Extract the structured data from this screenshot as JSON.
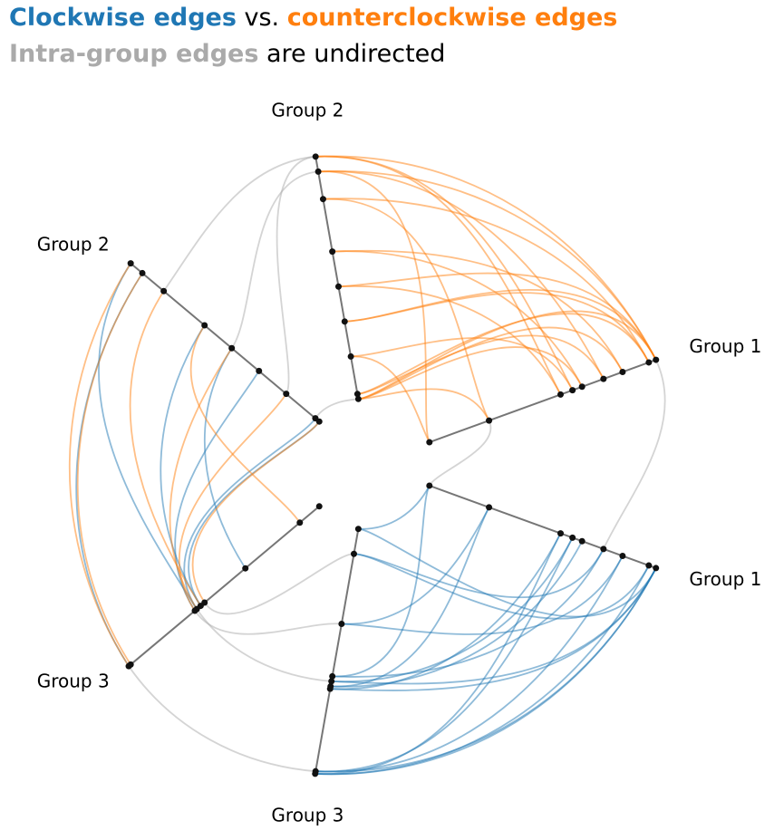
{
  "chart_data": {
    "type": "hive",
    "title_joiner": "vs.",
    "intra_note": "are undirected",
    "groups": [
      {
        "name": "Group 1",
        "nodes": [
          0.0,
          0.25,
          0.55,
          0.6,
          0.64,
          0.73,
          0.81,
          0.92,
          0.95
        ]
      },
      {
        "name": "Group 2",
        "nodes": [
          0.01,
          0.03,
          0.18,
          0.32,
          0.46,
          0.6,
          0.81,
          0.92,
          0.98
        ]
      },
      {
        "name": "Group 3",
        "nodes": [
          0.01,
          0.11,
          0.39,
          0.6,
          0.62,
          0.64,
          0.65,
          0.98,
          0.99
        ]
      }
    ],
    "edges": [
      {
        "name": "Clockwise edges",
        "color": "#1f77b4",
        "links": [
          [
            2,
            0,
            0,
            8
          ],
          [
            2,
            1,
            0,
            7
          ],
          [
            2,
            2,
            0,
            6
          ],
          [
            2,
            3,
            0,
            5
          ],
          [
            2,
            4,
            0,
            8
          ],
          [
            2,
            5,
            0,
            1
          ],
          [
            2,
            6,
            0,
            2
          ],
          [
            2,
            7,
            0,
            3
          ],
          [
            2,
            8,
            0,
            8
          ],
          [
            2,
            0,
            0,
            0
          ],
          [
            2,
            5,
            0,
            4
          ],
          [
            2,
            8,
            0,
            7
          ],
          [
            2,
            7,
            0,
            6
          ],
          [
            2,
            4,
            0,
            3
          ],
          [
            2,
            3,
            0,
            0
          ],
          [
            2,
            6,
            0,
            8
          ],
          [
            2,
            1,
            0,
            5
          ],
          [
            2,
            8,
            0,
            2
          ],
          [
            2,
            7,
            0,
            8
          ],
          [
            2,
            2,
            0,
            1
          ],
          [
            1,
            0,
            2,
            4
          ],
          [
            1,
            1,
            2,
            5
          ],
          [
            1,
            3,
            2,
            6
          ],
          [
            1,
            5,
            2,
            4
          ],
          [
            1,
            8,
            2,
            5
          ],
          [
            1,
            7,
            2,
            8
          ],
          [
            1,
            4,
            2,
            2
          ]
        ]
      },
      {
        "name": "counterclockwise edges",
        "color": "#ff7f0e",
        "links": [
          [
            0,
            8,
            1,
            8
          ],
          [
            0,
            8,
            1,
            7
          ],
          [
            0,
            7,
            1,
            6
          ],
          [
            0,
            6,
            1,
            0
          ],
          [
            0,
            8,
            1,
            3
          ],
          [
            0,
            5,
            1,
            1
          ],
          [
            0,
            2,
            1,
            4
          ],
          [
            0,
            1,
            1,
            0
          ],
          [
            0,
            3,
            1,
            8
          ],
          [
            0,
            4,
            1,
            5
          ],
          [
            0,
            0,
            1,
            2
          ],
          [
            0,
            7,
            1,
            1
          ],
          [
            0,
            6,
            1,
            5
          ],
          [
            0,
            2,
            1,
            8
          ],
          [
            0,
            8,
            1,
            0
          ],
          [
            0,
            1,
            1,
            6
          ],
          [
            0,
            5,
            1,
            7
          ],
          [
            0,
            3,
            1,
            2
          ],
          [
            0,
            4,
            1,
            0
          ],
          [
            0,
            0,
            1,
            7
          ],
          [
            0,
            7,
            1,
            3
          ],
          [
            0,
            8,
            1,
            4
          ],
          [
            1,
            8,
            2,
            8
          ],
          [
            1,
            6,
            2,
            4
          ],
          [
            1,
            4,
            2,
            5
          ],
          [
            1,
            2,
            2,
            6
          ],
          [
            1,
            0,
            2,
            3
          ],
          [
            1,
            5,
            2,
            1
          ],
          [
            1,
            7,
            2,
            7
          ]
        ]
      },
      {
        "name": "Intra-group edges",
        "color": "#aaaaaa",
        "links": [
          [
            0,
            8,
            0,
            5
          ],
          [
            0,
            1,
            0,
            0
          ],
          [
            1,
            8,
            1,
            2
          ],
          [
            1,
            7,
            1,
            4
          ],
          [
            1,
            8,
            1,
            6
          ],
          [
            1,
            0,
            1,
            1
          ],
          [
            2,
            5,
            2,
            4
          ],
          [
            2,
            8,
            2,
            7
          ],
          [
            2,
            6,
            2,
            2
          ],
          [
            2,
            3,
            2,
            1
          ]
        ]
      }
    ]
  }
}
